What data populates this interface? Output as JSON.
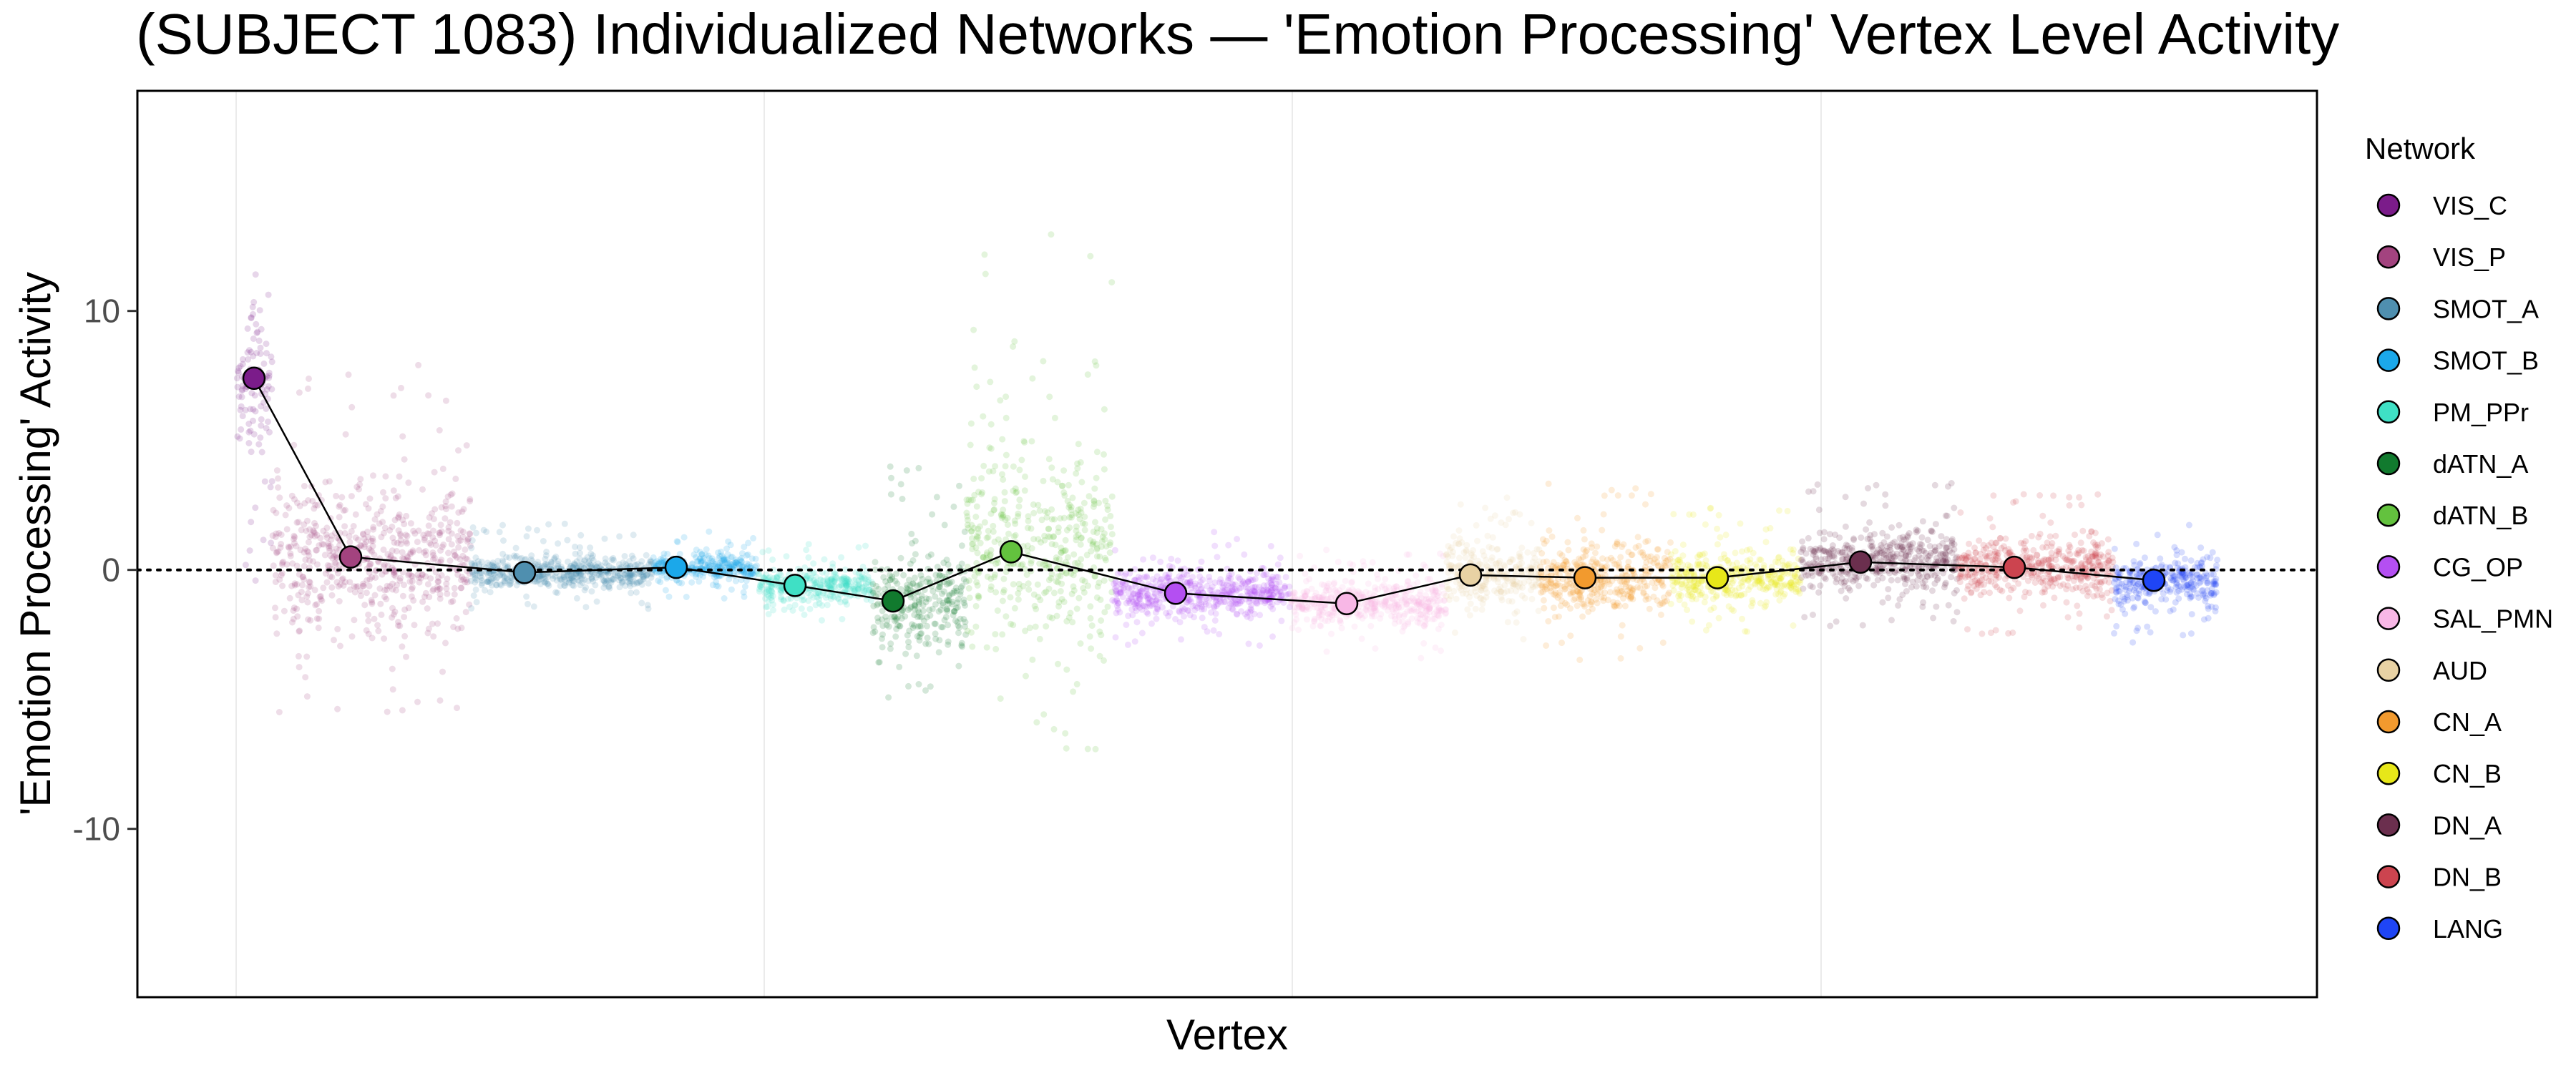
{
  "chart_data": {
    "type": "scatter",
    "title": "(SUBJECT 1083) Individualized Networks — 'Emotion Processing' Vertex Level Activity",
    "xlabel": "Vertex",
    "ylabel": "'Emotion Processing' Activity",
    "ylim": [
      -16.5,
      18.5
    ],
    "yticks": [
      -10,
      0,
      10
    ],
    "reference_line": 0,
    "grid": true,
    "legend": {
      "title": "Network",
      "position": "right"
    },
    "series": [
      {
        "name": "VIS_C",
        "color": "#7B1C8A",
        "mean": 7.4,
        "spread_low": -1.0,
        "spread_high": 13.0,
        "x_range": [
          0,
          700
        ]
      },
      {
        "name": "VIS_P",
        "color": "#A3437F",
        "mean": 0.5,
        "spread_low": -5.5,
        "spread_high": 8.0,
        "x_range": [
          700,
          4500
        ]
      },
      {
        "name": "SMOT_A",
        "color": "#4F8FAF",
        "mean": -0.1,
        "spread_low": -1.5,
        "spread_high": 1.8,
        "x_range": [
          4500,
          8000
        ]
      },
      {
        "name": "SMOT_B",
        "color": "#1BA8EA",
        "mean": 0.1,
        "spread_low": -1.2,
        "spread_high": 1.5,
        "x_range": [
          8000,
          10000
        ]
      },
      {
        "name": "PM_PPr",
        "color": "#3FE0C5",
        "mean": -0.6,
        "spread_low": -2.2,
        "spread_high": 1.0,
        "x_range": [
          10000,
          12200
        ]
      },
      {
        "name": "dATN_A",
        "color": "#117A2E",
        "mean": -1.2,
        "spread_low": -5.0,
        "spread_high": 4.0,
        "x_range": [
          12200,
          14000
        ]
      },
      {
        "name": "dATN_B",
        "color": "#63C23E",
        "mean": 0.7,
        "spread_low": -7.0,
        "spread_high": 13.0,
        "x_range": [
          14000,
          16800
        ]
      },
      {
        "name": "CG_OP",
        "color": "#B44FF2",
        "mean": -0.9,
        "spread_low": -3.0,
        "spread_high": 1.5,
        "x_range": [
          16800,
          20200
        ]
      },
      {
        "name": "SAL_PMN",
        "color": "#F8B7E6",
        "mean": -1.3,
        "spread_low": -3.5,
        "spread_high": 0.8,
        "x_range": [
          20200,
          23200
        ]
      },
      {
        "name": "AUD",
        "color": "#E8D2A4",
        "mean": -0.2,
        "spread_low": -3.0,
        "spread_high": 3.0,
        "x_range": [
          23200,
          25000
        ]
      },
      {
        "name": "CN_A",
        "color": "#F29A2E",
        "mean": -0.3,
        "spread_low": -3.5,
        "spread_high": 4.0,
        "x_range": [
          25000,
          27500
        ]
      },
      {
        "name": "CN_B",
        "color": "#E7E719",
        "mean": -0.3,
        "spread_low": -2.5,
        "spread_high": 2.5,
        "x_range": [
          27500,
          30000
        ]
      },
      {
        "name": "DN_A",
        "color": "#6B2F4E",
        "mean": 0.3,
        "spread_low": -2.5,
        "spread_high": 3.5,
        "x_range": [
          30000,
          33000
        ]
      },
      {
        "name": "DN_B",
        "color": "#CC444F",
        "mean": 0.1,
        "spread_low": -2.5,
        "spread_high": 3.0,
        "x_range": [
          33000,
          36000
        ]
      },
      {
        "name": "LANG",
        "color": "#1F45F5",
        "mean": -0.4,
        "spread_low": -3.0,
        "spread_high": 2.0,
        "x_range": [
          36000,
          38000
        ]
      }
    ]
  }
}
